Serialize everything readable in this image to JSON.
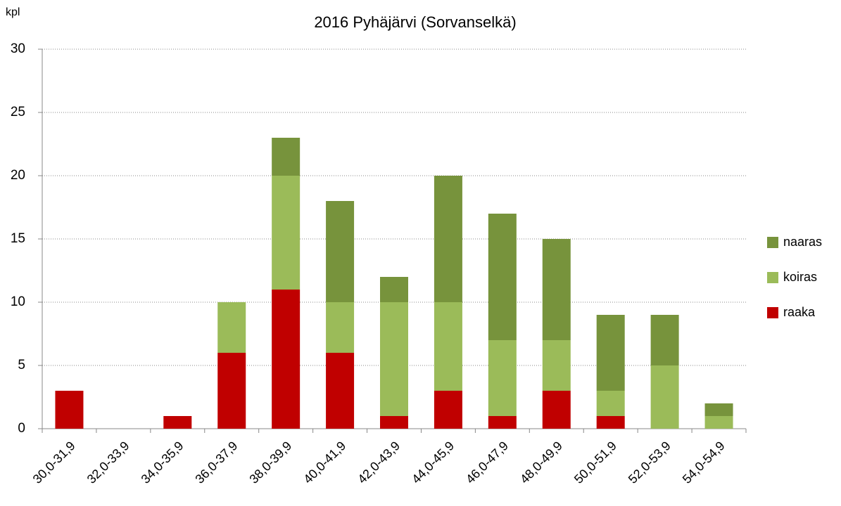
{
  "chart_data": {
    "type": "stacked_bar",
    "title": "2016 Pyhäjärvi (Sorvanselkä)",
    "y_label": "kpl",
    "categories": [
      "30,0-31,9",
      "32,0-33,9",
      "34,0-35,9",
      "36,0-37,9",
      "38,0-39,9",
      "40,0-41,9",
      "42,0-43,9",
      "44,0-45,9",
      "46,0-47,9",
      "48,0-49,9",
      "50,0-51,9",
      "52,0-53,9",
      "54,0-54,9"
    ],
    "series": [
      {
        "name": "raaka",
        "color": "#c00000",
        "values": [
          3,
          0,
          1,
          6,
          11,
          6,
          1,
          3,
          1,
          3,
          1,
          0,
          0
        ]
      },
      {
        "name": "koiras",
        "color": "#9bbb59",
        "values": [
          0,
          0,
          0,
          4,
          9,
          4,
          9,
          7,
          6,
          4,
          2,
          5,
          1
        ]
      },
      {
        "name": "naaras",
        "color": "#77933c",
        "values": [
          0,
          0,
          0,
          0,
          3,
          8,
          2,
          10,
          10,
          8,
          6,
          4,
          1
        ]
      }
    ],
    "ylim": [
      0,
      30
    ],
    "yticks": [
      0,
      5,
      10,
      15,
      20,
      25,
      30
    ],
    "grid": true,
    "legend": "right"
  }
}
